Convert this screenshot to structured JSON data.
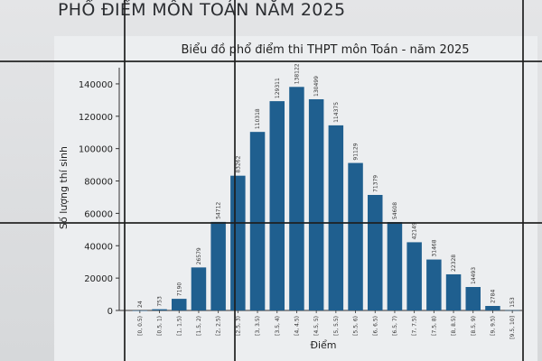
{
  "slide": {
    "title": "PHỔ ĐIỂM MÔN TOÁN NĂM 2025"
  },
  "chart_data": {
    "type": "bar",
    "title": "Biểu đồ phổ điểm thi THPT môn Toán - năm 2025",
    "xlabel": "Điểm",
    "ylabel": "Số lượng thí sinh",
    "categories": [
      "[0, 0.5)",
      "[0.5, 1)",
      "[1, 1.5)",
      "[1.5, 2)",
      "[2, 2.5)",
      "[2.5, 3)",
      "[3, 3.5)",
      "[3.5, 4)",
      "[4, 4.5)",
      "[4.5, 5)",
      "[5, 5.5)",
      "[5.5, 6)",
      "[6, 6.5)",
      "[6.5, 7)",
      "[7, 7.5)",
      "[7.5, 8)",
      "[8, 8.5)",
      "[8.5, 9)",
      "[9, 9.5)",
      "[9.5, 10]"
    ],
    "values": [
      24,
      753,
      7190,
      26579,
      54712,
      83262,
      110318,
      129311,
      138122,
      130499,
      114375,
      91129,
      71379,
      54608,
      42149,
      31468,
      22328,
      14493,
      2784,
      153
    ],
    "ylim": [
      0,
      150000
    ],
    "yticks": [
      0,
      20000,
      40000,
      60000,
      80000,
      100000,
      120000,
      140000
    ],
    "bar_color": "#1f5f8f",
    "grid": false
  }
}
